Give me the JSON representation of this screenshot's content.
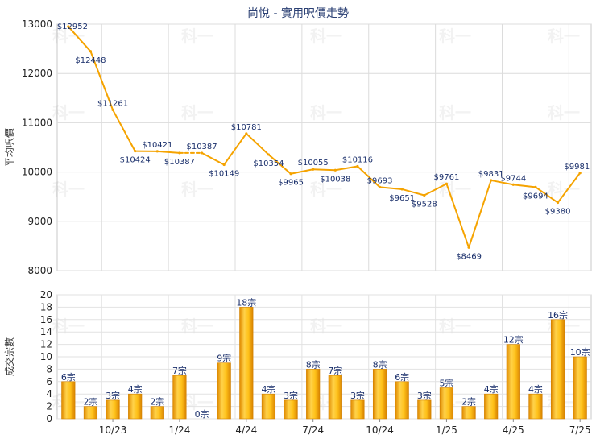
{
  "chart_data": [
    {
      "type": "line",
      "title": "尚悅 - 實用呎價走勢",
      "ylabel": "平均呎價",
      "ylim": [
        8000,
        13000
      ],
      "yticks": [
        8000,
        9000,
        10000,
        11000,
        12000,
        13000
      ],
      "color": "#f5a300",
      "grid": true,
      "watermark": "科一",
      "x": [
        "8/23",
        "9/23",
        "10/23",
        "11/23",
        "12/23",
        "1/24",
        "2/24",
        "3/24",
        "4/24",
        "5/24",
        "6/24",
        "7/24",
        "8/24",
        "9/24",
        "10/24",
        "11/24",
        "12/24",
        "1/25",
        "2/25",
        "3/25",
        "4/25",
        "5/25",
        "6/25",
        "7/25"
      ],
      "values": [
        12952,
        12448,
        11261,
        10424,
        10421,
        10387,
        10387,
        10149,
        10781,
        10354,
        9965,
        10055,
        10038,
        10116,
        9693,
        9651,
        9528,
        9761,
        8469,
        9831,
        9744,
        9694,
        9380,
        9981
      ],
      "labels": [
        "$12952",
        "$12448",
        "$11261",
        "$10424",
        "$10421",
        "$10387",
        "$10387",
        "$10149",
        "$10781",
        "$10354",
        "$9965",
        "$10055",
        "$10038",
        "$10116",
        "$9693",
        "$9651",
        "$9528",
        "$9761",
        "$8469",
        "$9831",
        "$9744",
        "$9694",
        "$9380",
        "$9981"
      ],
      "dashed_segments": [
        5
      ]
    },
    {
      "type": "bar",
      "ylabel": "成交宗數",
      "ylim": [
        0,
        20
      ],
      "yticks": [
        0,
        2,
        4,
        6,
        8,
        10,
        12,
        14,
        16,
        18,
        20
      ],
      "bar_color": "#f5a300",
      "values": [
        6,
        2,
        3,
        4,
        2,
        7,
        0,
        9,
        18,
        4,
        3,
        8,
        7,
        3,
        8,
        6,
        3,
        5,
        2,
        4,
        12,
        4,
        16,
        10
      ],
      "labels": [
        "6宗",
        "2宗",
        "3宗",
        "4宗",
        "2宗",
        "7宗",
        "0宗",
        "9宗",
        "18宗",
        "4宗",
        "3宗",
        "8宗",
        "7宗",
        "3宗",
        "8宗",
        "6宗",
        "3宗",
        "5宗",
        "2宗",
        "4宗",
        "12宗",
        "4宗",
        "16宗",
        "10宗"
      ],
      "xtick_labels": [
        {
          "index": 2,
          "label": "10/23"
        },
        {
          "index": 5,
          "label": "1/24"
        },
        {
          "index": 8,
          "label": "4/24"
        },
        {
          "index": 11,
          "label": "7/24"
        },
        {
          "index": 14,
          "label": "10/24"
        },
        {
          "index": 17,
          "label": "1/25"
        },
        {
          "index": 20,
          "label": "4/25"
        },
        {
          "index": 23,
          "label": "7/25"
        }
      ]
    }
  ]
}
